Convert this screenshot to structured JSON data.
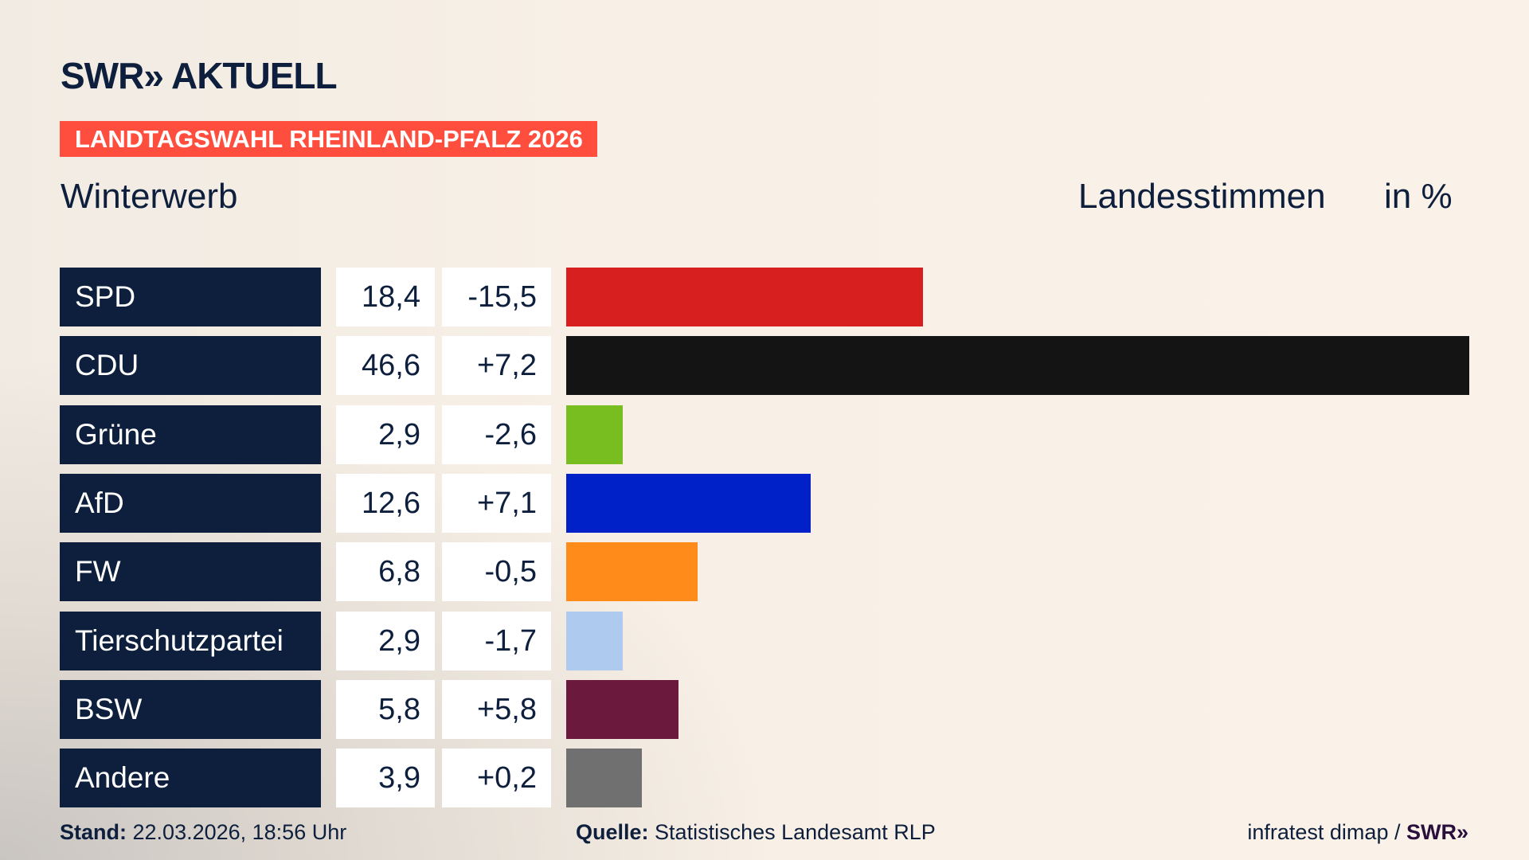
{
  "header": {
    "logo": "SWR» AKTUELL",
    "banner": "LANDTAGSWAHL RHEINLAND-PFALZ 2026",
    "subtitle": "Winterwerb",
    "metric": "Landesstimmen",
    "unit": "in %"
  },
  "colors": {
    "banner": "#ff4e3d",
    "navy": "#0d1f3c"
  },
  "chart_data": {
    "type": "bar",
    "orientation": "horizontal",
    "categories": [
      "SPD",
      "CDU",
      "Grüne",
      "AfD",
      "FW",
      "Tierschutzpartei",
      "BSW",
      "Andere"
    ],
    "values": [
      18.4,
      46.6,
      2.9,
      12.6,
      6.8,
      2.9,
      5.8,
      3.9
    ],
    "value_labels": [
      "18,4",
      "46,6",
      "2,9",
      "12,6",
      "6,8",
      "2,9",
      "5,8",
      "3,9"
    ],
    "diff_labels": [
      "-15,5",
      "+7,2",
      "-2,6",
      "+7,1",
      "-0,5",
      "-1,7",
      "+5,8",
      "+0,2"
    ],
    "colors": [
      "#d81f20",
      "#141414",
      "#78be20",
      "#0020c8",
      "#ff8c1a",
      "#aecbef",
      "#6b1a3e",
      "#707070"
    ],
    "title": "Winterwerb",
    "unit": "in %",
    "xlim": [
      0,
      46.6
    ],
    "grid": false
  },
  "footer": {
    "stand_label": "Stand:",
    "stand_value": "22.03.2026, 18:56 Uhr",
    "source_label": "Quelle:",
    "source_value": "Statistisches Landesamt RLP",
    "credit": "infratest dimap /",
    "credit_logo": "SWR»"
  }
}
